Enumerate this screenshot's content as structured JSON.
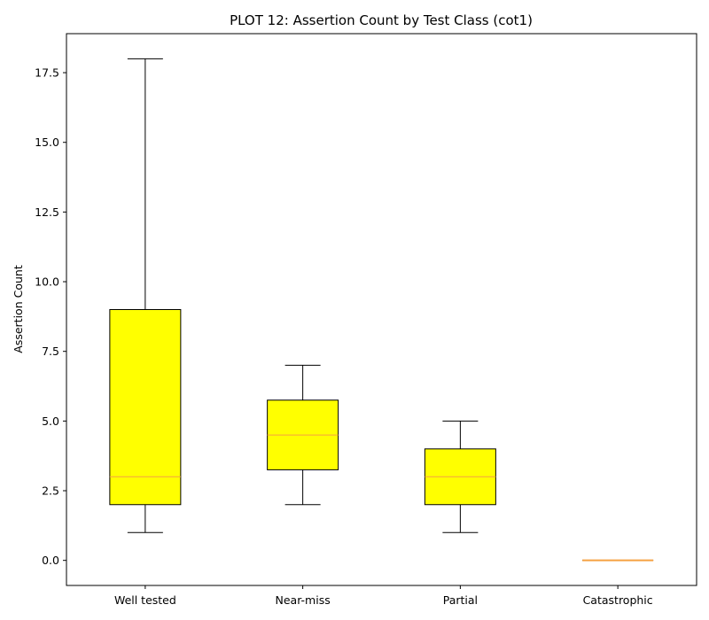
{
  "chart_data": {
    "type": "box",
    "title": "PLOT 12: Assertion Count by Test Class (cot1)",
    "xlabel": "",
    "ylabel": "Assertion Count",
    "ylim": [
      -0.9,
      18.9
    ],
    "yticks": [
      0.0,
      2.5,
      5.0,
      7.5,
      10.0,
      12.5,
      15.0,
      17.5
    ],
    "ytick_labels": [
      "0.0",
      "2.5",
      "5.0",
      "7.5",
      "10.0",
      "12.5",
      "15.0",
      "17.5"
    ],
    "categories": [
      "Well tested",
      "Near-miss",
      "Partial",
      "Catastrophic"
    ],
    "boxes": [
      {
        "category": "Well tested",
        "whisker_low": 1,
        "q1": 2,
        "median": 3,
        "q3": 9,
        "whisker_high": 18
      },
      {
        "category": "Near-miss",
        "whisker_low": 2,
        "q1": 3.25,
        "median": 4.5,
        "q3": 5.75,
        "whisker_high": 7
      },
      {
        "category": "Partial",
        "whisker_low": 1,
        "q1": 2,
        "median": 3,
        "q3": 4,
        "whisker_high": 5
      },
      {
        "category": "Catastrophic",
        "whisker_low": 0,
        "q1": 0,
        "median": 0,
        "q3": 0,
        "whisker_high": 0
      }
    ],
    "grid": false,
    "colors": {
      "box_fill": "#ffff00",
      "box_edge": "#000000",
      "median": "#f5a142",
      "whisker": "#000000"
    }
  }
}
